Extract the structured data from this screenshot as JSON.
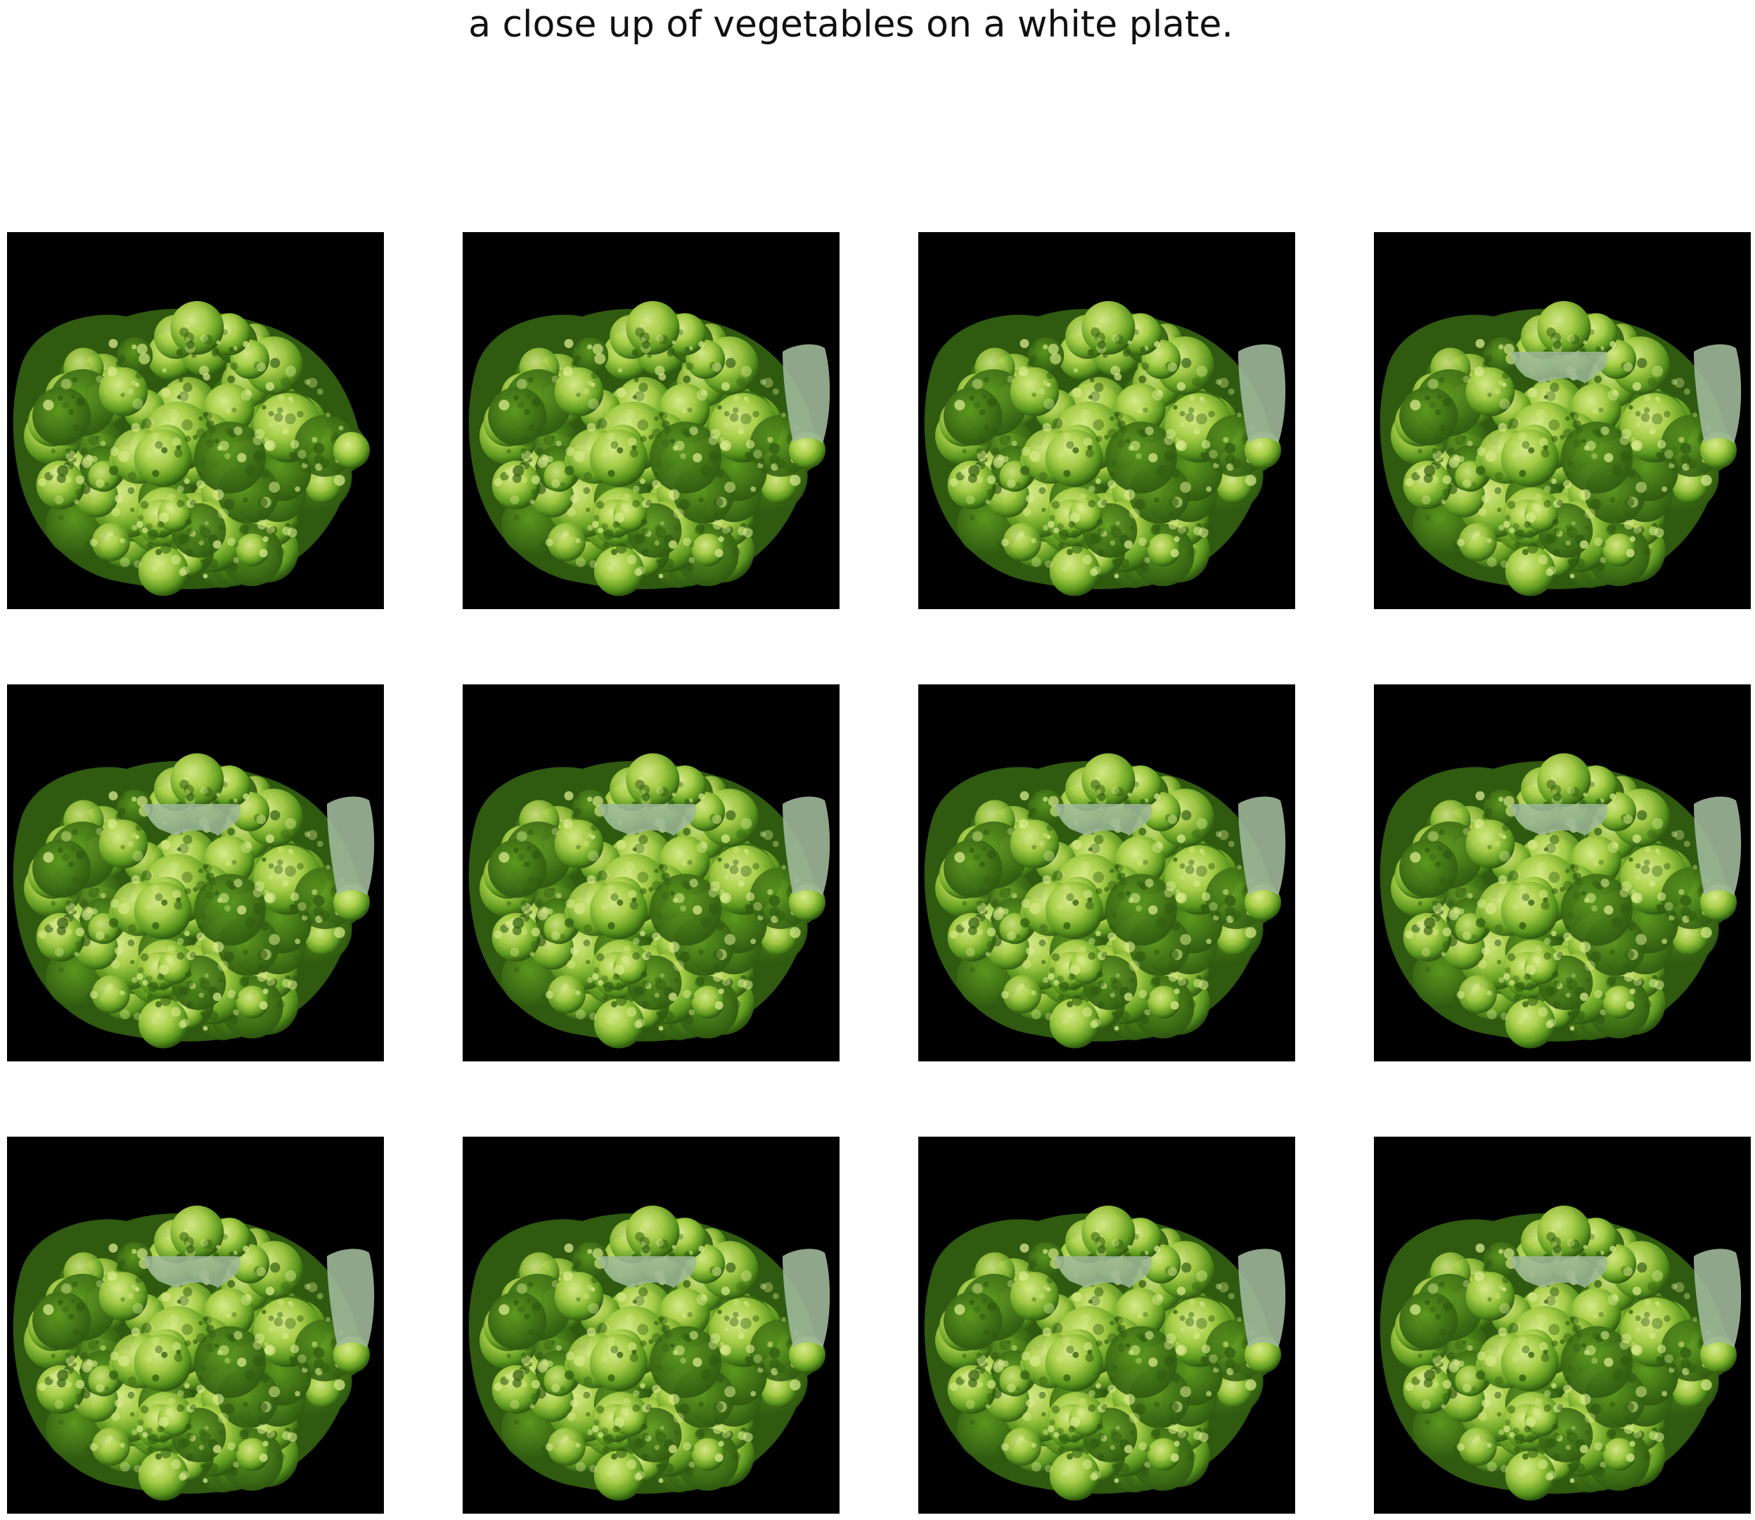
{
  "caption": "a close up of vegetables on a white plate.",
  "grid": {
    "rows": 3,
    "columns": 4,
    "panels": [
      {
        "subject": "broccoli-pile",
        "side_stalk": false,
        "top_stalk": false
      },
      {
        "subject": "broccoli-pile",
        "side_stalk": true,
        "top_stalk": false
      },
      {
        "subject": "broccoli-pile",
        "side_stalk": true,
        "top_stalk": false
      },
      {
        "subject": "broccoli-pile",
        "side_stalk": true,
        "top_stalk": true
      },
      {
        "subject": "broccoli-pile",
        "side_stalk": true,
        "top_stalk": true
      },
      {
        "subject": "broccoli-pile",
        "side_stalk": true,
        "top_stalk": true
      },
      {
        "subject": "broccoli-pile",
        "side_stalk": true,
        "top_stalk": true
      },
      {
        "subject": "broccoli-pile",
        "side_stalk": true,
        "top_stalk": true
      },
      {
        "subject": "broccoli-pile",
        "side_stalk": true,
        "top_stalk": true
      },
      {
        "subject": "broccoli-pile",
        "side_stalk": true,
        "top_stalk": true
      },
      {
        "subject": "broccoli-pile",
        "side_stalk": true,
        "top_stalk": true
      },
      {
        "subject": "broccoli-pile",
        "side_stalk": true,
        "top_stalk": true
      }
    ]
  },
  "colors": {
    "page_background": "#ffffff",
    "panel_background": "#000000",
    "broccoli_dark": "#2f5a10",
    "broccoli_mid": "#5d9a1f",
    "broccoli_light": "#a9cf4a",
    "broccoli_highlight": "#d8eb8c",
    "stalk_pale": "#9fb89a"
  }
}
